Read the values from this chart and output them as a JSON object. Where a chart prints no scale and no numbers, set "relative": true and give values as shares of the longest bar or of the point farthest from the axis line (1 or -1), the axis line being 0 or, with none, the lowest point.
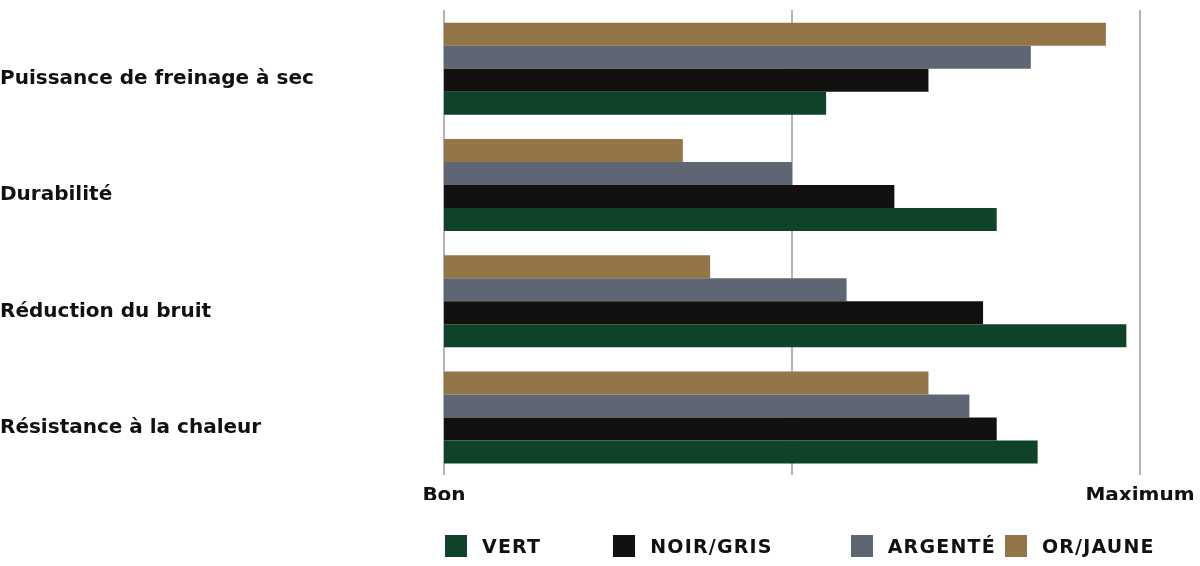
{
  "chart_data": {
    "type": "bar",
    "orientation": "horizontal",
    "relative": true,
    "categories": [
      "Puissance de freinage à sec",
      "Durabilité",
      "Réduction du bruit",
      "Résistance à la chaleur"
    ],
    "series": [
      {
        "name": "VERT",
        "color": "#0e4229",
        "values": [
          0.56,
          0.81,
          1,
          0.87
        ]
      },
      {
        "name": "NOIR/GRIS",
        "color": "#121110",
        "values": [
          0.71,
          0.66,
          0.79,
          0.81
        ]
      },
      {
        "name": "ARGENTÉ",
        "color": "#5f6673",
        "values": [
          0.86,
          0.51,
          0.59,
          0.77
        ]
      },
      {
        "name": "OR/JAUNE",
        "color": "#937547",
        "values": [
          0.97,
          0.35,
          0.39,
          0.71
        ]
      }
    ],
    "ref_lines": [
      {
        "axis": "x",
        "value": 0,
        "label": "Bon",
        "color": "#b3b3b3"
      },
      {
        "axis": "x",
        "value": 0.51,
        "color": "#b3b3b3"
      },
      {
        "axis": "x",
        "value": 1.02,
        "label": "Maximum",
        "color": "#b3b3b3"
      }
    ],
    "legend": "bottom"
  }
}
